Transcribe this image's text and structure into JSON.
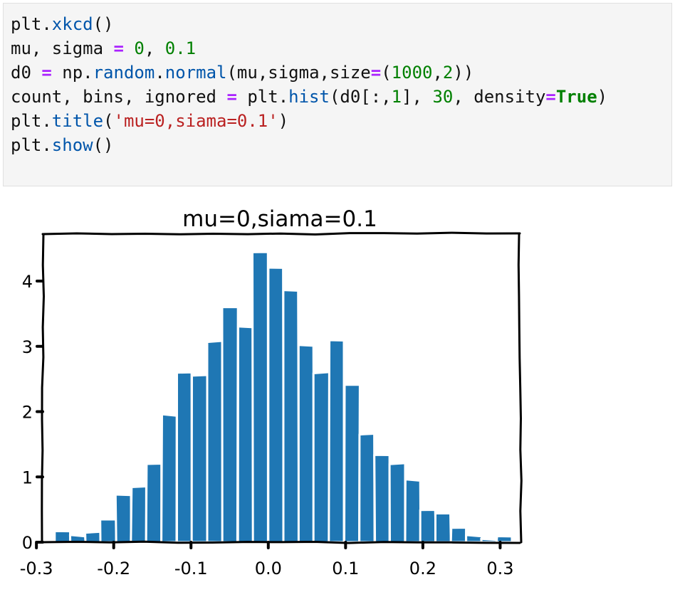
{
  "code_cell": {
    "lines": [
      [
        {
          "t": "plt.",
          "c": "plain"
        },
        {
          "t": "xkcd",
          "c": "attr"
        },
        {
          "t": "()",
          "c": "plain"
        }
      ],
      [
        {
          "t": "mu, sigma ",
          "c": "plain"
        },
        {
          "t": "=",
          "c": "op"
        },
        {
          "t": " ",
          "c": "plain"
        },
        {
          "t": "0",
          "c": "num"
        },
        {
          "t": ", ",
          "c": "plain"
        },
        {
          "t": "0.1",
          "c": "num"
        }
      ],
      [
        {
          "t": "d0 ",
          "c": "plain"
        },
        {
          "t": "=",
          "c": "op"
        },
        {
          "t": " np.",
          "c": "plain"
        },
        {
          "t": "random",
          "c": "attr"
        },
        {
          "t": ".",
          "c": "plain"
        },
        {
          "t": "normal",
          "c": "attr"
        },
        {
          "t": "(mu,sigma,size",
          "c": "plain"
        },
        {
          "t": "=",
          "c": "op"
        },
        {
          "t": "(",
          "c": "plain"
        },
        {
          "t": "1000",
          "c": "num"
        },
        {
          "t": ",",
          "c": "plain"
        },
        {
          "t": "2",
          "c": "num"
        },
        {
          "t": "))",
          "c": "plain"
        }
      ],
      [
        {
          "t": "count, bins, ignored ",
          "c": "plain"
        },
        {
          "t": "=",
          "c": "op"
        },
        {
          "t": " plt.",
          "c": "plain"
        },
        {
          "t": "hist",
          "c": "attr"
        },
        {
          "t": "(d0[:,",
          "c": "plain"
        },
        {
          "t": "1",
          "c": "num"
        },
        {
          "t": "], ",
          "c": "plain"
        },
        {
          "t": "30",
          "c": "num"
        },
        {
          "t": ", density",
          "c": "plain"
        },
        {
          "t": "=",
          "c": "op"
        },
        {
          "t": "True",
          "c": "kw"
        },
        {
          "t": ")",
          "c": "plain"
        }
      ],
      [
        {
          "t": "plt.",
          "c": "plain"
        },
        {
          "t": "title",
          "c": "attr"
        },
        {
          "t": "(",
          "c": "plain"
        },
        {
          "t": "'mu=0,siama=0.1'",
          "c": "str"
        },
        {
          "t": ")",
          "c": "plain"
        }
      ],
      [
        {
          "t": "plt.",
          "c": "plain"
        },
        {
          "t": "show",
          "c": "attr"
        },
        {
          "t": "()",
          "c": "plain"
        }
      ]
    ]
  },
  "colors": {
    "code_background": "#f5f5f5",
    "bar_fill": "#1f77b4",
    "bar_edge": "#ffffff",
    "axes": "#000000"
  },
  "chart_data": {
    "type": "bar",
    "title": "mu=0,siama=0.1",
    "style": "xkcd hand-drawn",
    "xlabel": "",
    "ylabel": "",
    "xlim": [
      -0.29,
      0.33
    ],
    "ylim": [
      0,
      4.6
    ],
    "xticks": [
      -0.3,
      -0.2,
      -0.1,
      0.0,
      0.1,
      0.2,
      0.3
    ],
    "xtick_labels": [
      "-0.3",
      "-0.2",
      "-0.1",
      "0.0",
      "0.1",
      "0.2",
      "0.3"
    ],
    "yticks": [
      0,
      1,
      2,
      3,
      4
    ],
    "ytick_labels": [
      "0",
      "1",
      "2",
      "3",
      "4"
    ],
    "grid": false,
    "bin_edges": [
      -0.276,
      -0.2563,
      -0.2366,
      -0.2169,
      -0.1972,
      -0.1775,
      -0.1578,
      -0.1381,
      -0.1184,
      -0.0987,
      -0.079,
      -0.0593,
      -0.0396,
      -0.0199,
      -0.0002,
      0.0195,
      0.0392,
      0.0589,
      0.0786,
      0.0983,
      0.118,
      0.1377,
      0.1574,
      0.1771,
      0.1968,
      0.2165,
      0.2362,
      0.2559,
      0.2756,
      0.2953,
      0.315
    ],
    "values": [
      0.17,
      0.1,
      0.15,
      0.35,
      0.72,
      0.85,
      1.2,
      1.95,
      2.6,
      2.55,
      3.08,
      3.6,
      3.3,
      4.45,
      4.2,
      3.85,
      3.02,
      2.6,
      3.1,
      2.4,
      1.65,
      1.33,
      1.2,
      0.95,
      0.5,
      0.43,
      0.22,
      0.1,
      0.05,
      0.1
    ]
  }
}
